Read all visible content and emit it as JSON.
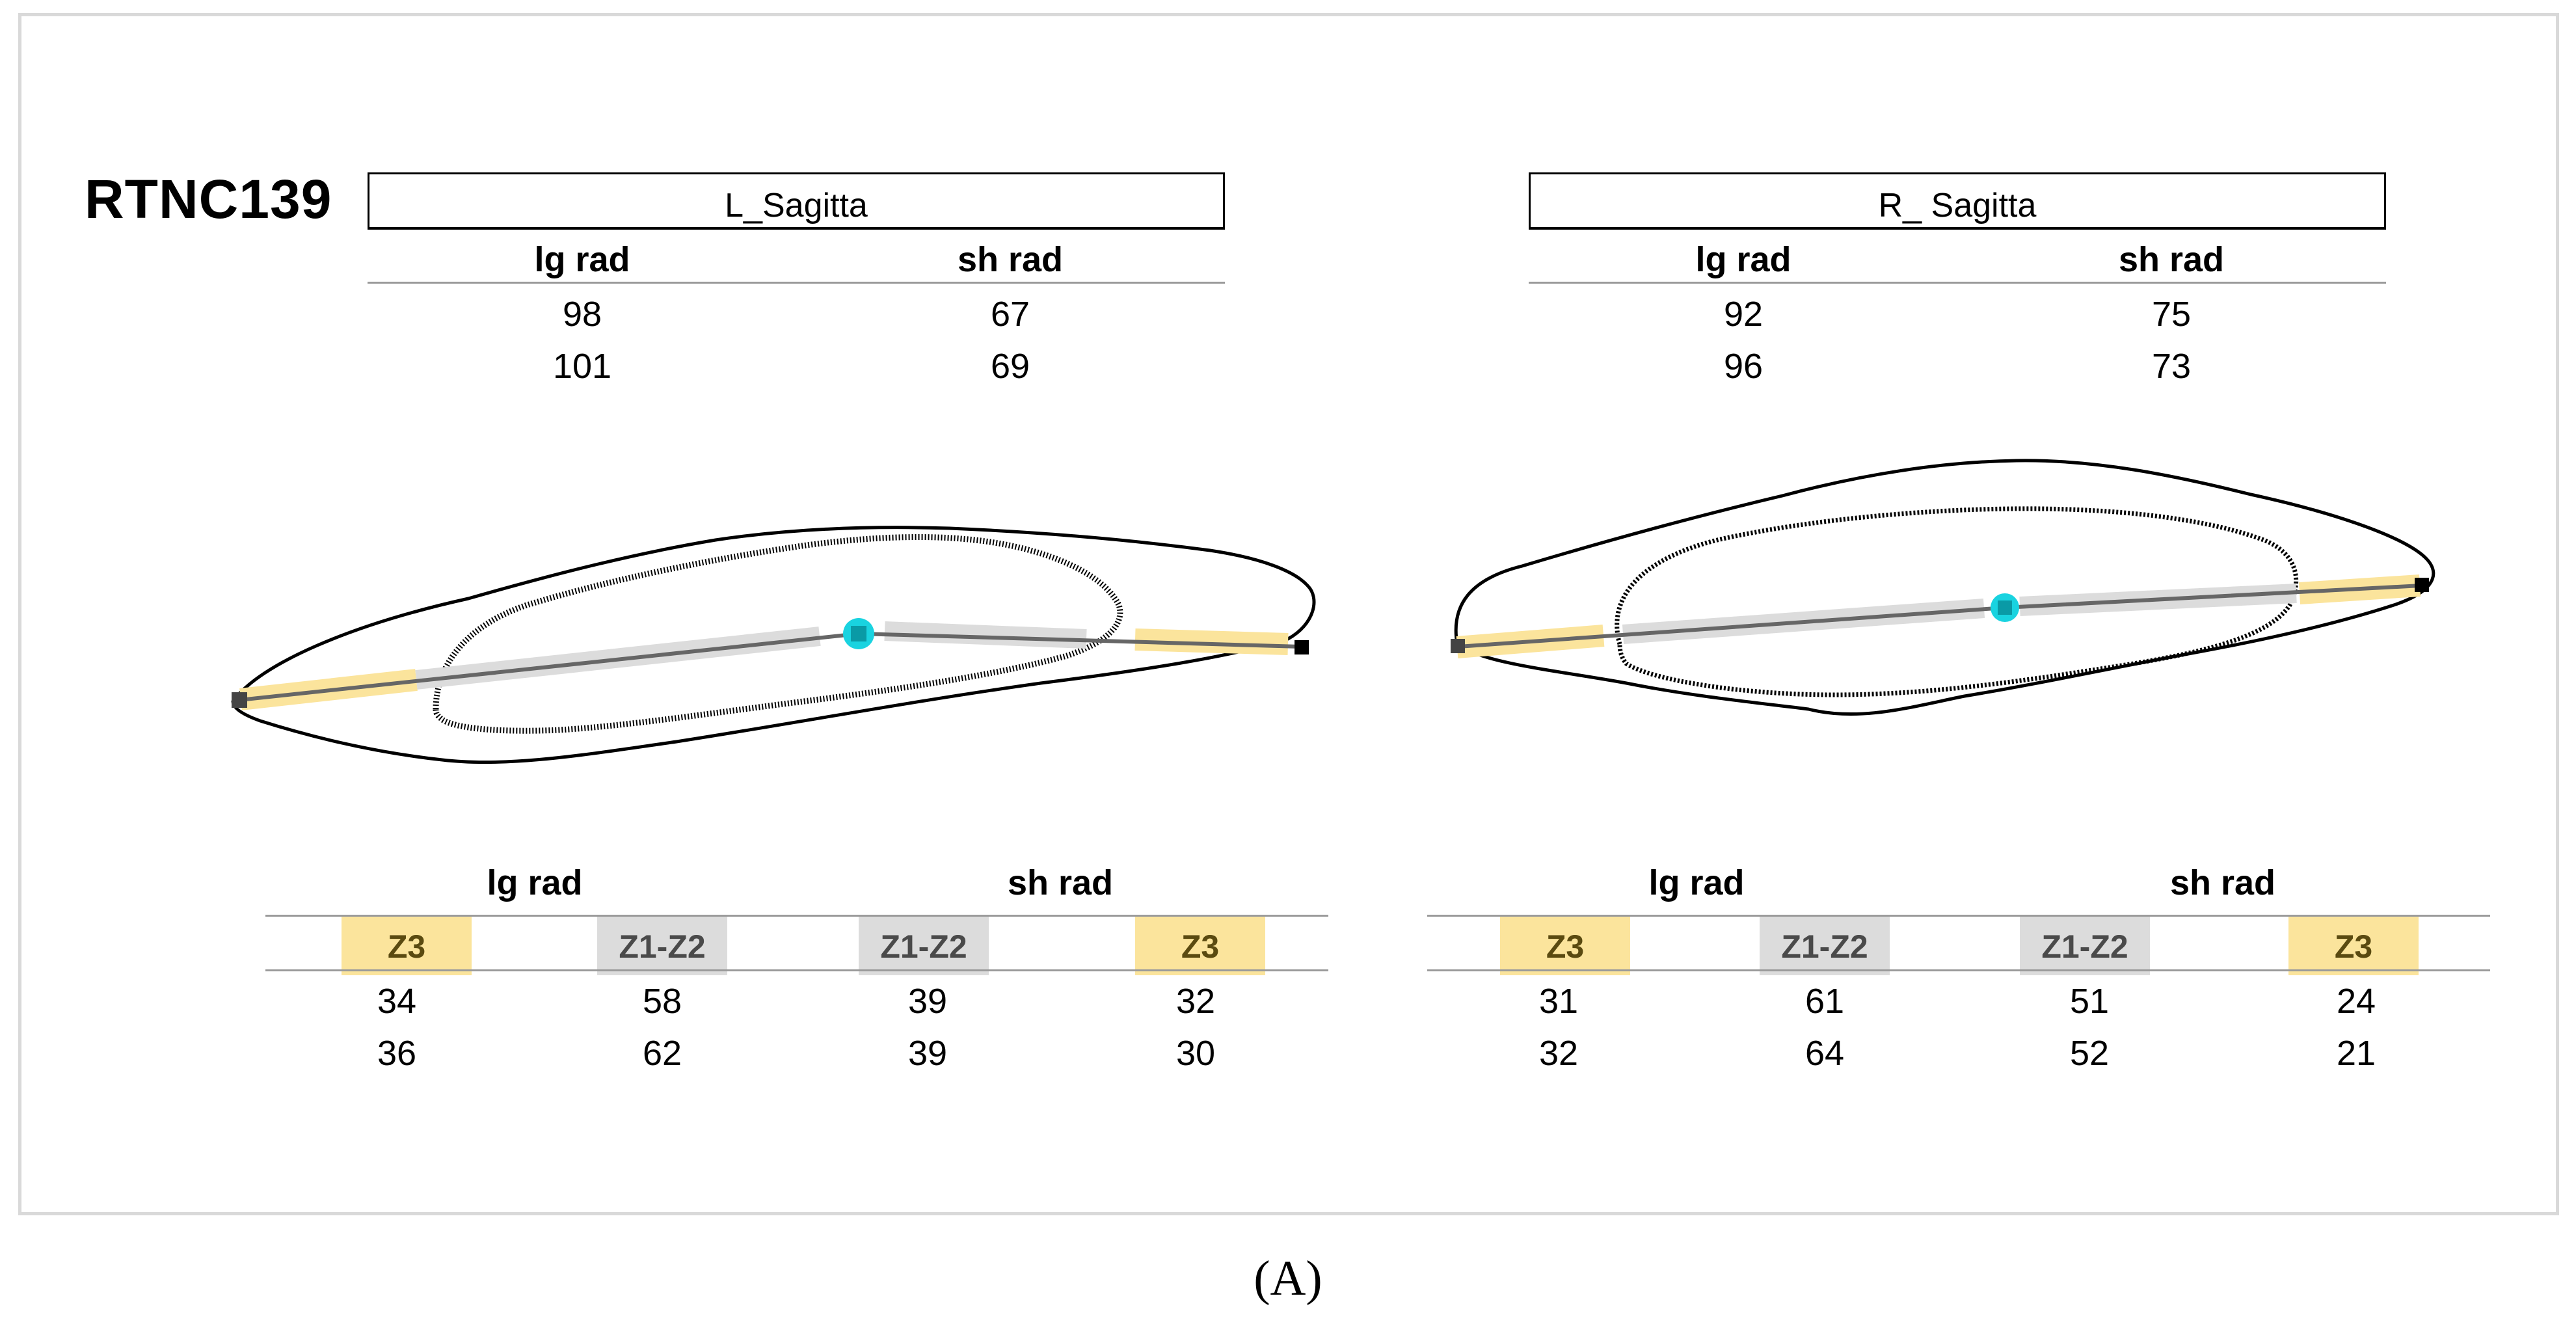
{
  "specimen_id": "RTNC139",
  "caption": "(A)",
  "colors": {
    "z3_zone": "#fbe49c",
    "z1z2_zone": "#dcdcdc",
    "focus_marker": "#19d3e0",
    "frame_border": "#d9d9d9"
  },
  "left": {
    "title": "L_Sagitta",
    "top_table": {
      "headers": [
        "lg rad",
        "sh rad"
      ],
      "rows": [
        [
          "98",
          "67"
        ],
        [
          "101",
          "69"
        ]
      ]
    },
    "bottom_table": {
      "group_headers": [
        "lg rad",
        "sh rad"
      ],
      "zones": [
        "Z3",
        "Z1-Z2",
        "Z1-Z2",
        "Z3"
      ],
      "rows": [
        [
          "34",
          "58",
          "39",
          "32"
        ],
        [
          "36",
          "62",
          "39",
          "30"
        ]
      ]
    }
  },
  "right": {
    "title": "R_ Sagitta",
    "top_table": {
      "headers": [
        "lg rad",
        "sh rad"
      ],
      "rows": [
        [
          "92",
          "75"
        ],
        [
          "96",
          "73"
        ]
      ]
    },
    "bottom_table": {
      "group_headers": [
        "lg rad",
        "sh rad"
      ],
      "zones": [
        "Z3",
        "Z1-Z2",
        "Z1-Z2",
        "Z3"
      ],
      "rows": [
        [
          "31",
          "61",
          "51",
          "24"
        ],
        [
          "32",
          "64",
          "52",
          "21"
        ]
      ]
    }
  }
}
